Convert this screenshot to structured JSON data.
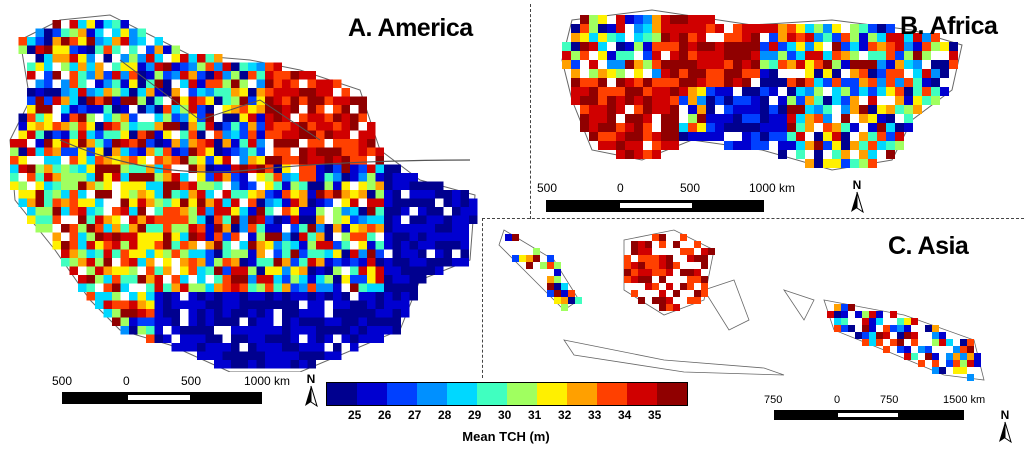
{
  "panels": {
    "america": {
      "title": "A. America",
      "scale_ticks": [
        "500",
        "0",
        "500",
        "1000 km"
      ]
    },
    "africa": {
      "title": "B. Africa",
      "scale_ticks": [
        "500",
        "0",
        "500",
        "1000 km"
      ]
    },
    "asia": {
      "title": "C. Asia",
      "scale_ticks": [
        "750",
        "0",
        "750",
        "1500 km"
      ]
    }
  },
  "north_label": "N",
  "legend": {
    "title": "Mean TCH (m)",
    "tick_labels": [
      "25",
      "26",
      "27",
      "28",
      "29",
      "30",
      "31",
      "32",
      "33",
      "34",
      "35"
    ],
    "colors": [
      "#00008f",
      "#0000d0",
      "#0040ff",
      "#0090ff",
      "#00d8ff",
      "#40ffc0",
      "#a0ff60",
      "#fff000",
      "#ffa000",
      "#ff4000",
      "#d00000",
      "#900000"
    ]
  }
}
